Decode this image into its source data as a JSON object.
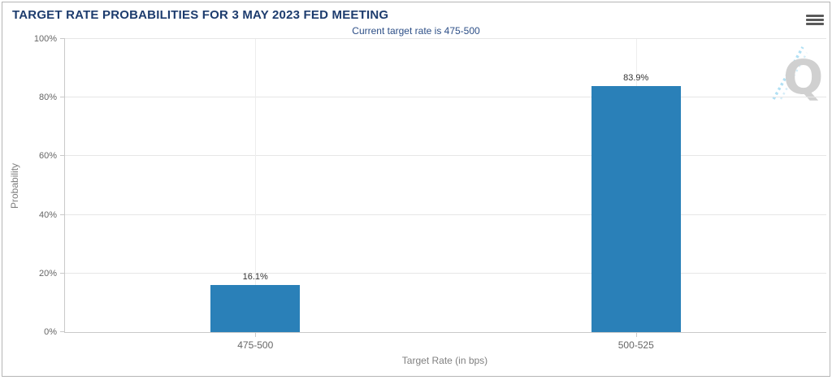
{
  "panel": {
    "menu_icon": "hamburger-icon",
    "watermark_letter": "Q"
  },
  "chart_data": {
    "type": "bar",
    "title": "TARGET RATE PROBABILITIES FOR 3 MAY 2023 FED MEETING",
    "subtitle": "Current target rate is 475-500",
    "categories": [
      "475-500",
      "500-525"
    ],
    "values": [
      16.1,
      83.9
    ],
    "value_labels": [
      "16.1%",
      "83.9%"
    ],
    "xlabel": "Target Rate (in bps)",
    "ylabel": "Probability",
    "ylim": [
      0,
      100
    ],
    "yticks": [
      0,
      20,
      40,
      60,
      80,
      100
    ],
    "ytick_labels": [
      "0%",
      "20%",
      "40%",
      "60%",
      "80%",
      "100%"
    ],
    "grid": true,
    "legend": "none",
    "bar_color": "#2a80b8"
  },
  "colors": {
    "title": "#1d3c6e",
    "subtitle": "#2d4f87",
    "bar": "#2a80b8",
    "axis_text": "#666666",
    "axis_title_text": "#808080",
    "value_label": "#333333",
    "gridline": "#e6e6e6",
    "axis_line": "#c9c9c9",
    "watermark_gray": "#cbcbcb",
    "watermark_blue": "#a9ddf3"
  }
}
